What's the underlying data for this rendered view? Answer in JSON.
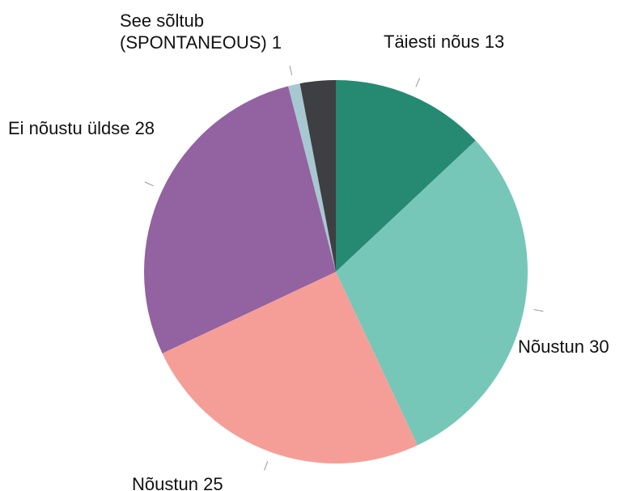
{
  "chart_data": {
    "type": "pie",
    "categories": [
      "Täiesti nõus",
      "Nõustun",
      "Nõustun",
      "Ei nõustu üldse",
      "See sõltub (SPONTANEOUS)",
      null
    ],
    "values": [
      13,
      30,
      25,
      28,
      1,
      3
    ],
    "colors": [
      "#268a73",
      "#76c7b8",
      "#f59e98",
      "#9362a1",
      "#a7c8d0",
      "#3e3f42"
    ]
  }
}
